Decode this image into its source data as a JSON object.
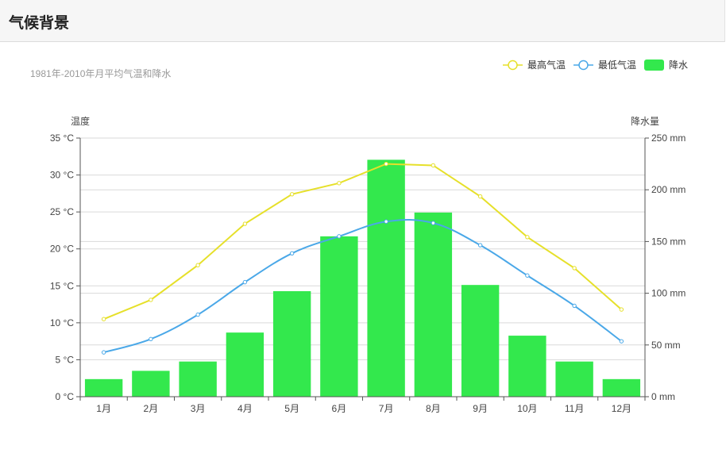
{
  "header": {
    "title": "气候背景"
  },
  "chart_data": {
    "type": "bar",
    "subtitle": "1981年-2010年月平均气温和降水",
    "categories": [
      "1月",
      "2月",
      "3月",
      "4月",
      "5月",
      "6月",
      "7月",
      "8月",
      "9月",
      "10月",
      "11月",
      "12月"
    ],
    "series": [
      {
        "name": "最高气温",
        "type": "line",
        "axis": "left",
        "color": "#e6e02a",
        "values": [
          10.5,
          13.1,
          17.8,
          23.4,
          27.4,
          28.9,
          31.5,
          31.3,
          27.1,
          21.6,
          17.4,
          11.8
        ]
      },
      {
        "name": "最低气温",
        "type": "line",
        "axis": "left",
        "color": "#4aa8e8",
        "smooth": true,
        "values": [
          6.0,
          7.8,
          11.1,
          15.5,
          19.4,
          21.7,
          23.7,
          23.5,
          20.5,
          16.4,
          12.3,
          7.5
        ]
      },
      {
        "name": "降水",
        "type": "bar",
        "axis": "right",
        "color": "#33e84d",
        "values": [
          17,
          25,
          34,
          62,
          102,
          155,
          229,
          178,
          108,
          59,
          34,
          17
        ]
      }
    ],
    "yaxis_left": {
      "label": "温度",
      "unit": "°C",
      "min": 0,
      "max": 35,
      "step": 5
    },
    "yaxis_right": {
      "label": "降水量",
      "unit": "mm",
      "min": 0,
      "max": 250,
      "step": 50
    },
    "legend": {
      "position": "top-right"
    },
    "grid": true
  }
}
